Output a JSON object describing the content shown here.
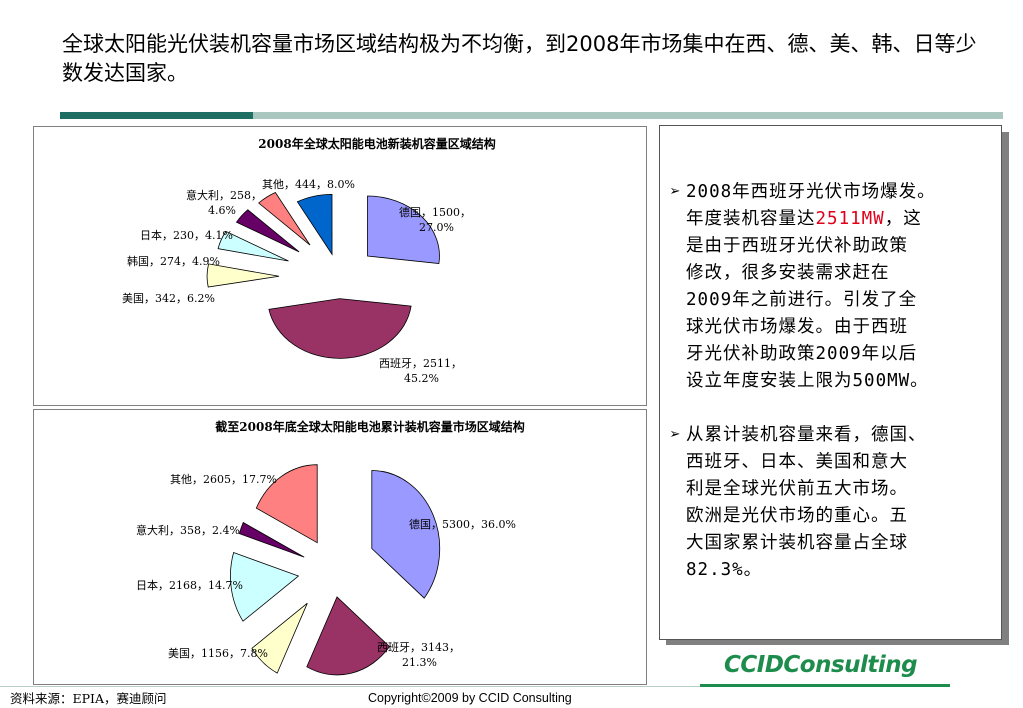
{
  "header": {
    "title": "全球太阳能光伏装机容量市场区域结构极为不均衡，到2008年市场集中在西、德、美、韩、日等少数发达国家。"
  },
  "chart_data": [
    {
      "type": "pie",
      "title": "2008年全球太阳能电池新装机容量区域结构",
      "slices": [
        {
          "label": "德国",
          "value": 1500,
          "percent": "27.0%",
          "color": "#9999ff"
        },
        {
          "label": "西班牙",
          "value": 2511,
          "percent": "45.2%",
          "color": "#993366"
        },
        {
          "label": "美国",
          "value": 342,
          "percent": "6.2%",
          "color": "#ffffcc"
        },
        {
          "label": "韩国",
          "value": 274,
          "percent": "4.9%",
          "color": "#ccffff"
        },
        {
          "label": "日本",
          "value": 230,
          "percent": "4.1%",
          "color": "#660066"
        },
        {
          "label": "意大利",
          "value": 258,
          "percent": "4.6%",
          "color": "#ff8080"
        },
        {
          "label": "其他",
          "value": 444,
          "percent": "8.0%",
          "color": "#0066cc"
        }
      ]
    },
    {
      "type": "pie",
      "title": "截至2008年底全球太阳能电池累计装机容量市场区域结构",
      "slices": [
        {
          "label": "德国",
          "value": 5300,
          "percent": "36.0%",
          "color": "#9999ff"
        },
        {
          "label": "西班牙",
          "value": 3143,
          "percent": "21.3%",
          "color": "#993366"
        },
        {
          "label": "美国",
          "value": 1156,
          "percent": "7.8%",
          "color": "#ffffcc"
        },
        {
          "label": "日本",
          "value": 2168,
          "percent": "14.7%",
          "color": "#ccffff"
        },
        {
          "label": "意大利",
          "value": 358,
          "percent": "2.4%",
          "color": "#660066"
        },
        {
          "label": "其他",
          "value": 2605,
          "percent": "17.7%",
          "color": "#ff8080"
        }
      ]
    }
  ],
  "notes": {
    "bullet1_lines": [
      "2008年西班牙光伏市场爆发。",
      "年度装机容量达",
      "2511MW",
      "，这",
      "是由于西班牙光伏补助政策",
      "修改，很多安装需求赶在",
      "2009年之前进行。引发了全",
      "球光伏市场爆发。由于西班",
      "牙光伏补助政策2009年以后",
      "设立年度安装上限为500MW。"
    ],
    "bullet2_lines": [
      "从累计装机容量来看，德国、",
      "西班牙、日本、美国和意大",
      "利是全球光伏前五大市场。",
      "欧洲是光伏市场的重心。五",
      "大国家累计装机容量占全球",
      "82.3%。"
    ],
    "bullet_marker": "➢"
  },
  "footer": {
    "source": "资料来源：EPIA，赛迪顾问",
    "copyright": "Copyright©2009 by CCID Consulting",
    "logo": "CCIDConsulting"
  }
}
